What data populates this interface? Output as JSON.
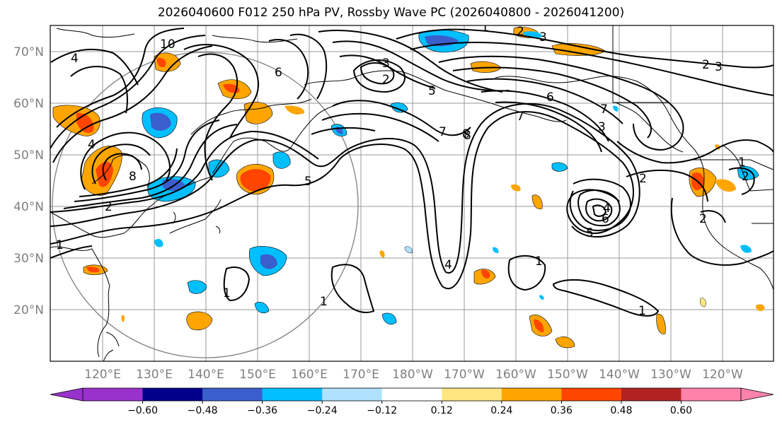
{
  "title": "2026040600 F012 250 hPa PV, Rossby Wave PC (2026040800 - 2026041200)",
  "lat_labels": [
    "70°N",
    "60°N",
    "50°N",
    "40°N",
    "30°N",
    "20°N"
  ],
  "lon_labels": [
    "120°E",
    "130°E",
    "140°E",
    "150°E",
    "160°E",
    "170°E",
    "180°W",
    "170°W",
    "160°W",
    "150°W",
    "140°W",
    "130°W",
    "120°W"
  ],
  "colorbar": {
    "ticks": [
      "−0.60",
      "−0.48",
      "−0.36",
      "−0.24",
      "−0.12",
      "0.12",
      "0.24",
      "0.36",
      "0.48",
      "0.60"
    ],
    "colors": [
      "#9932cc",
      "#00008b",
      "#3a5fcd",
      "#00bfff",
      "#b0e2ff",
      "#ffffff",
      "#ffe680",
      "#ffa500",
      "#ff4500",
      "#b22222",
      "#ff82ab",
      "#ff82ab"
    ]
  },
  "contour_labels": [
    "10",
    "8",
    "4",
    "3",
    "2",
    "2",
    "3",
    "5",
    "6",
    "7",
    "8",
    "7",
    "7",
    "6",
    "5",
    "4",
    "3",
    "2",
    "2",
    "1",
    "1",
    "1",
    "1",
    "1",
    "4",
    "5",
    "6",
    "8",
    "2",
    "3",
    "2",
    "4",
    "1",
    "1",
    "2"
  ]
}
